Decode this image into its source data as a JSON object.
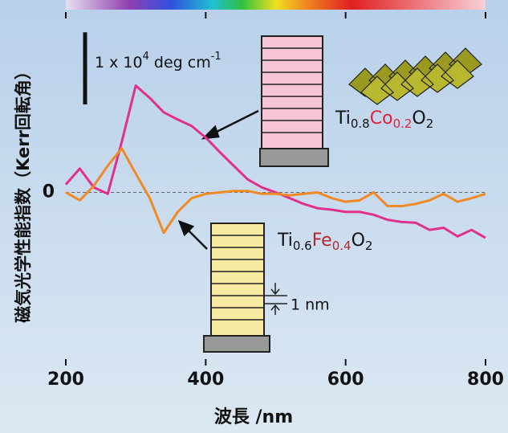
{
  "chart_data": {
    "type": "line",
    "x_label": "波長 /nm",
    "y_label": "磁気光学性能指数（Kerr回転角）",
    "scale_bar": {
      "value": 1,
      "parts": [
        "1 x 10",
        "4",
        " deg cm",
        "-1"
      ]
    },
    "size_label": "1 nm",
    "x": [
      200,
      220,
      240,
      260,
      280,
      300,
      320,
      340,
      360,
      380,
      400,
      420,
      440,
      460,
      480,
      500,
      520,
      540,
      560,
      580,
      600,
      620,
      640,
      660,
      680,
      700,
      720,
      740,
      760,
      780,
      800
    ],
    "series": [
      {
        "name_parts": [
          "Ti",
          "0.8",
          "Co",
          "0.2",
          "O",
          "2"
        ],
        "color": "#e0308c",
        "values": [
          0.11,
          0.33,
          0.07,
          -0.02,
          0.7,
          1.48,
          1.31,
          1.11,
          1.01,
          0.92,
          0.76,
          0.56,
          0.37,
          0.18,
          0.07,
          0,
          -0.08,
          -0.16,
          -0.22,
          -0.24,
          -0.27,
          -0.27,
          -0.31,
          -0.38,
          -0.41,
          -0.42,
          -0.52,
          -0.49,
          -0.61,
          -0.52,
          -0.63
        ]
      },
      {
        "name_parts": [
          "Ti",
          "0.6",
          "Fe",
          "0.4",
          "O",
          "2"
        ],
        "color": "#f08a24",
        "values": [
          0,
          -0.11,
          0.09,
          0.37,
          0.61,
          0.26,
          -0.08,
          -0.56,
          -0.27,
          -0.08,
          -0.02,
          0,
          0.02,
          0.02,
          -0.02,
          -0.02,
          -0.04,
          -0.02,
          0,
          -0.08,
          -0.13,
          -0.11,
          0,
          -0.19,
          -0.19,
          -0.16,
          -0.11,
          -0.02,
          -0.13,
          -0.08,
          -0.02
        ]
      }
    ],
    "xlim": [
      200,
      800
    ],
    "xticks": [
      200,
      400,
      600,
      800
    ],
    "ylim": [
      -2.4,
      2.5
    ],
    "yticks": [
      0
    ],
    "zero_line": true
  }
}
